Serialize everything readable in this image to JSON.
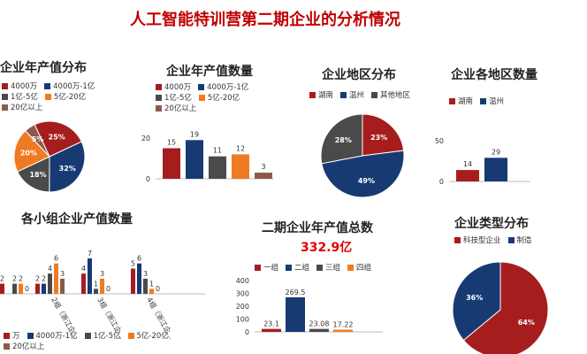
{
  "page": {
    "title": "人工智能特训营第二期企业的分析情况"
  },
  "palette": {
    "c1": "#a61d1d",
    "c2": "#173a73",
    "c3": "#4a4a4a",
    "c4": "#f07a21",
    "c5": "#8c5a4a"
  },
  "chart_data": [
    {
      "id": "value_dist_pie",
      "type": "pie",
      "title": "企业年产值分布",
      "legend": [
        "4000万",
        "4000万-1亿",
        "1亿-5亿",
        "5亿-20亿",
        "20亿以上"
      ],
      "slices": [
        {
          "label": "4000万",
          "value": 25,
          "text": "25%"
        },
        {
          "label": "4000万-1亿",
          "value": 32,
          "text": "32%"
        },
        {
          "label": "1亿-5亿",
          "value": 18,
          "text": "18%"
        },
        {
          "label": "5亿-20亿",
          "value": 20,
          "text": "20%"
        },
        {
          "label": "20亿以上",
          "value": 5,
          "text": "5%"
        }
      ]
    },
    {
      "id": "value_count_bar",
      "type": "bar",
      "title": "企业年产值数量",
      "legend": [
        "4000万",
        "4000万-1亿",
        "1亿-5亿",
        "5亿-20亿",
        "20亿以上"
      ],
      "categories": [
        "4000万",
        "4000万-1亿",
        "1亿-5亿",
        "5亿-20亿",
        "20亿以上"
      ],
      "values": [
        15,
        19,
        11,
        12,
        3
      ],
      "yticks": [
        "0",
        "20"
      ],
      "ylim": [
        0,
        20
      ]
    },
    {
      "id": "region_pie",
      "type": "pie",
      "title": "企业地区分布",
      "legend": [
        "湖南",
        "温州",
        "其他地区"
      ],
      "slices": [
        {
          "label": "湖南",
          "value": 23,
          "text": "23%"
        },
        {
          "label": "温州",
          "value": 49,
          "text": "49%"
        },
        {
          "label": "其他地区",
          "value": 28,
          "text": "28%"
        }
      ]
    },
    {
      "id": "region_count_bar",
      "type": "bar",
      "title": "企业各地区数量",
      "legend": [
        "湖南",
        "温州"
      ],
      "categories": [
        "湖南",
        "温州"
      ],
      "values": [
        14,
        29
      ],
      "yticks": [
        "0",
        "50"
      ],
      "ylim": [
        0,
        50
      ]
    },
    {
      "id": "group_value_bar",
      "type": "bar",
      "title": "各小组企业产值数量",
      "legend": [
        "万",
        "4000万-1亿",
        "1亿-5亿",
        "5亿-20亿",
        "20亿以上"
      ],
      "categories": [
        "",
        "2组（浙江企...",
        "3组（浙江企...",
        "4组（浙江企..."
      ],
      "series": [
        {
          "name": "万",
          "values": [
            2,
            2,
            4,
            5
          ]
        },
        {
          "name": "4000万-1亿",
          "values": [
            null,
            2,
            7,
            6
          ]
        },
        {
          "name": "1亿-5亿",
          "values": [
            2,
            4,
            1,
            3
          ]
        },
        {
          "name": "5亿-20亿",
          "values": [
            2,
            6,
            3,
            1
          ]
        },
        {
          "name": "20亿以上",
          "values": [
            0,
            3,
            0,
            0
          ]
        }
      ]
    },
    {
      "id": "group_total_bar",
      "type": "bar",
      "title": "二期企业年产值总数",
      "total": "332.9亿",
      "legend": [
        "一组",
        "二组",
        "三组",
        "四组"
      ],
      "categories": [
        "一组",
        "二组",
        "三组",
        "四组"
      ],
      "values": [
        23.1,
        269.5,
        23.08,
        17.22
      ],
      "value_labels": [
        "23.1",
        "269.5",
        "23.08",
        "17.22"
      ],
      "yticks": [
        "0",
        "100",
        "200",
        "300",
        "400"
      ],
      "ylim": [
        0,
        400
      ]
    },
    {
      "id": "type_pie",
      "type": "pie",
      "title": "企业类型分布",
      "legend": [
        "科技型企业",
        "制造"
      ],
      "slices": [
        {
          "label": "科技型企业",
          "value": 64,
          "text": "64%"
        },
        {
          "label": "制造",
          "value": 36,
          "text": "36%"
        }
      ]
    }
  ]
}
